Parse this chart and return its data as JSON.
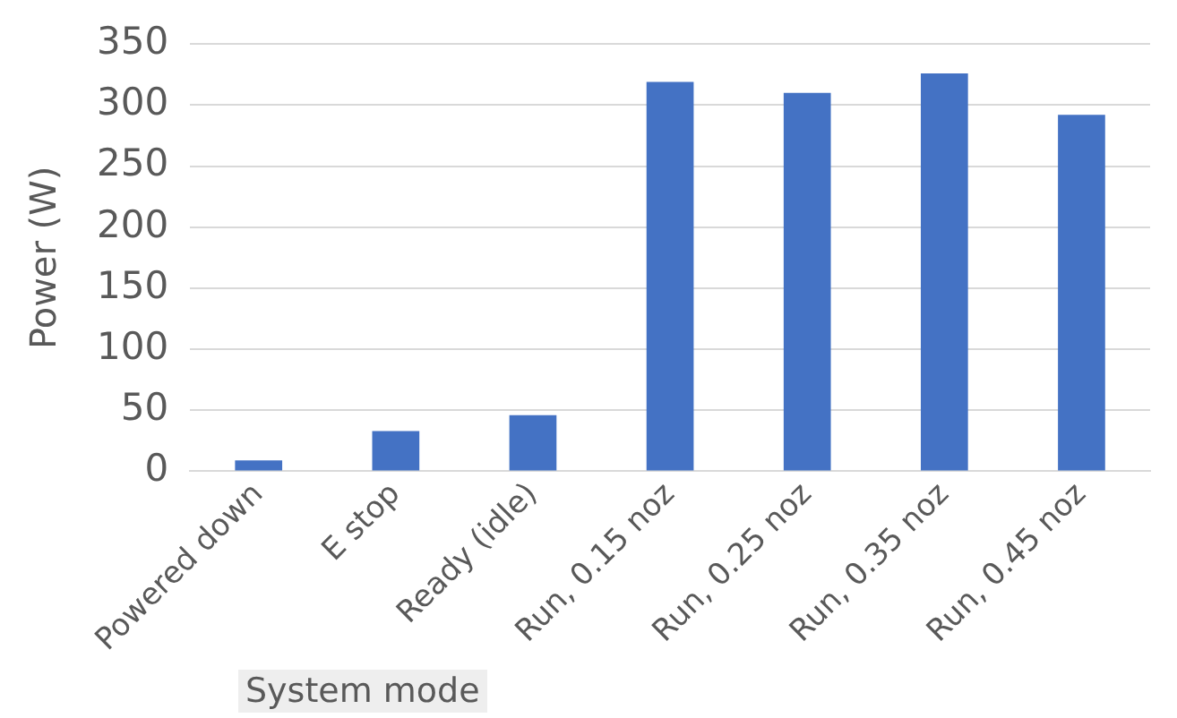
{
  "chart_data": {
    "type": "bar",
    "xlabel": "System mode",
    "ylabel": "Power (W)",
    "categories": [
      "Powered down",
      "E stop",
      "Ready (idle)",
      "Run, 0.15 noz",
      "Run, 0.25 noz",
      "Run, 0.35 noz",
      "Run, 0.45 noz"
    ],
    "values": [
      9,
      33,
      46,
      319,
      310,
      326,
      292
    ],
    "color": "#4472c4",
    "ylim": [
      0,
      350
    ],
    "yticks": [
      0,
      50,
      100,
      150,
      200,
      250,
      300,
      350
    ],
    "grid": "y"
  }
}
